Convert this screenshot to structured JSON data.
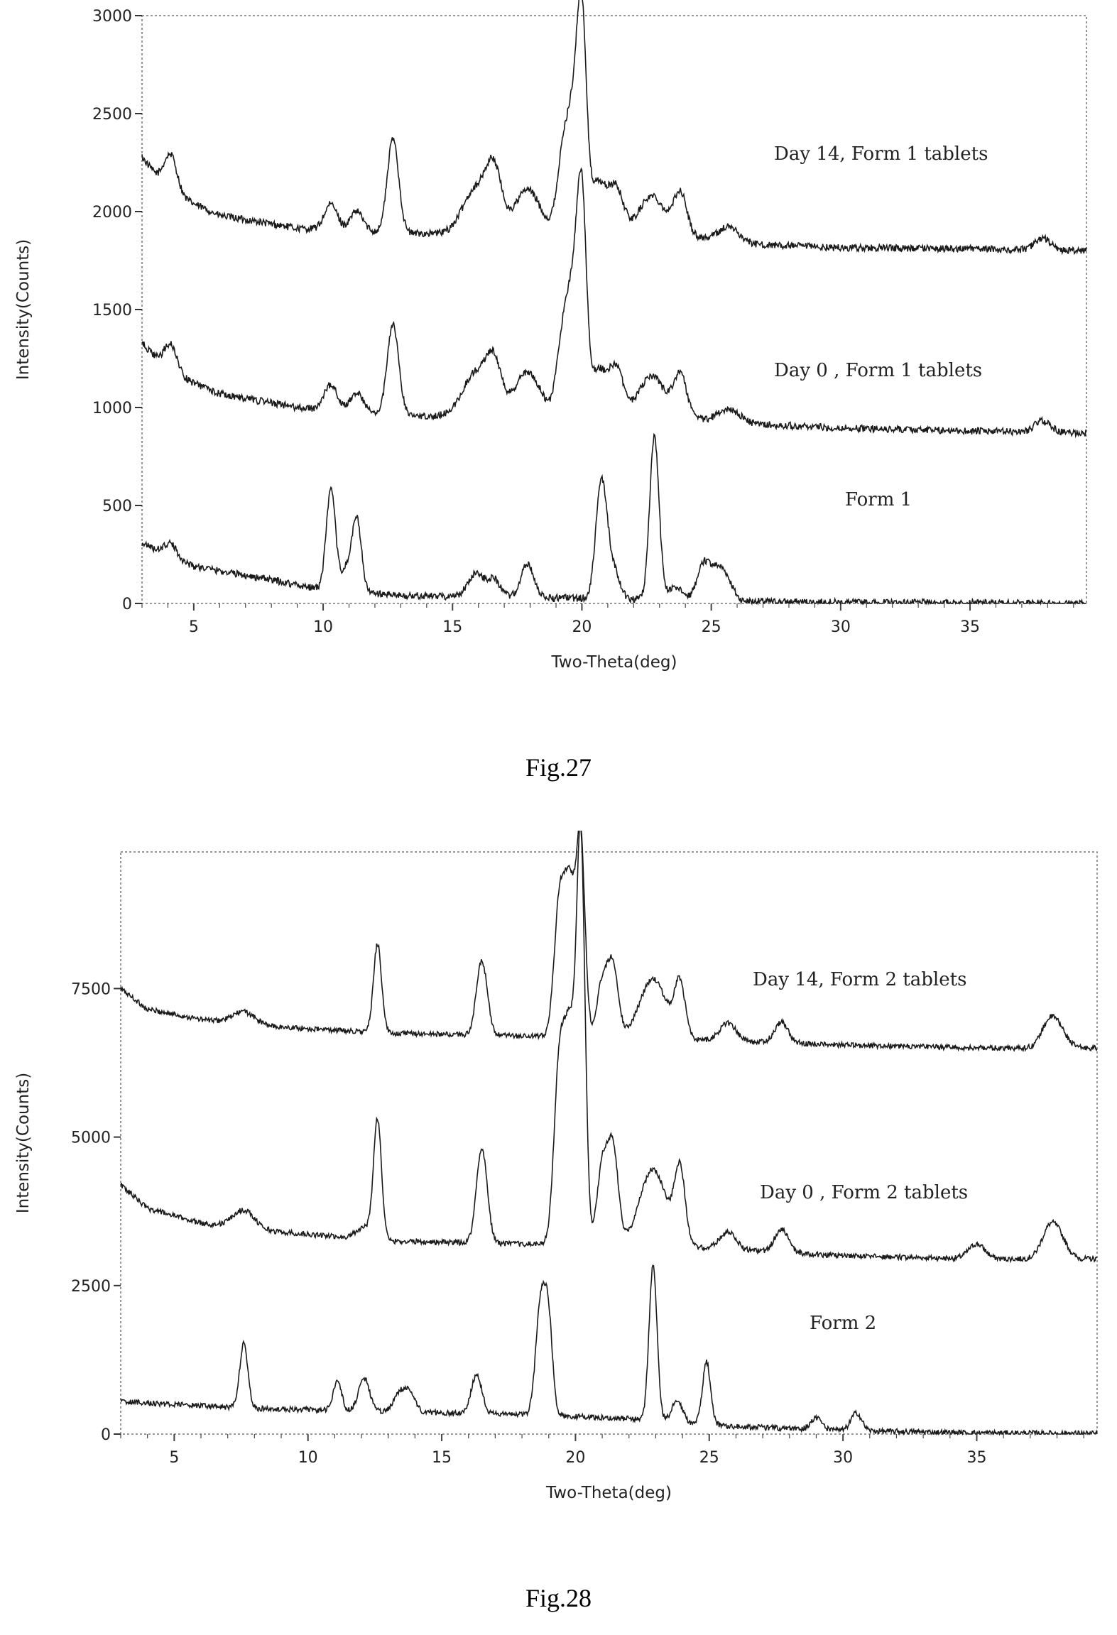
{
  "chart_data": [
    {
      "type": "line",
      "caption": "Fig.27",
      "xlabel": "Two-Theta(deg)",
      "ylabel": "Intensity(Counts)",
      "xlim": [
        3,
        39.5
      ],
      "ylim": [
        0,
        3000
      ],
      "x_ticks": [
        5,
        10,
        15,
        20,
        25,
        30,
        35
      ],
      "y_ticks": [
        0,
        500,
        1000,
        1500,
        2000,
        2500,
        3000
      ],
      "series": [
        {
          "name": "Day 14, Form 1 tablets",
          "baseline": [
            [
              3,
              2280
            ],
            [
              4,
              2100
            ],
            [
              6,
              1980
            ],
            [
              9,
              1915
            ],
            [
              13,
              1890
            ],
            [
              19,
              1880
            ],
            [
              24,
              1880
            ],
            [
              26,
              1835
            ],
            [
              30,
              1815
            ],
            [
              35,
              1810
            ],
            [
              39.5,
              1800
            ]
          ],
          "peaks": [
            [
              4.1,
              200,
              0.25
            ],
            [
              10.3,
              130,
              0.25
            ],
            [
              11.3,
              100,
              0.25
            ],
            [
              12.7,
              480,
              0.22
            ],
            [
              15.9,
              230,
              0.5
            ],
            [
              16.6,
              290,
              0.3
            ],
            [
              17.9,
              230,
              0.5
            ],
            [
              19.3,
              430,
              0.25
            ],
            [
              19.7,
              500,
              0.22
            ],
            [
              20.0,
              1000,
              0.18
            ],
            [
              20.6,
              260,
              0.3
            ],
            [
              21.3,
              240,
              0.3
            ],
            [
              22.7,
              200,
              0.5
            ],
            [
              23.8,
              210,
              0.25
            ],
            [
              25.7,
              80,
              0.4
            ],
            [
              37.8,
              60,
              0.3
            ]
          ]
        },
        {
          "name": "Day 0 , Form 1 tablets",
          "baseline": [
            [
              3,
              1330
            ],
            [
              4,
              1180
            ],
            [
              6,
              1070
            ],
            [
              9,
              1000
            ],
            [
              13,
              960
            ],
            [
              19,
              950
            ],
            [
              24,
              950
            ],
            [
              26,
              920
            ],
            [
              30,
              895
            ],
            [
              35,
              880
            ],
            [
              39.5,
              870
            ]
          ],
          "peaks": [
            [
              4.1,
              150,
              0.25
            ],
            [
              10.3,
              130,
              0.25
            ],
            [
              11.3,
              100,
              0.25
            ],
            [
              12.7,
              460,
              0.22
            ],
            [
              15.9,
              220,
              0.5
            ],
            [
              16.6,
              240,
              0.3
            ],
            [
              17.9,
              230,
              0.5
            ],
            [
              19.3,
              440,
              0.25
            ],
            [
              19.7,
              520,
              0.22
            ],
            [
              20.0,
              1000,
              0.18
            ],
            [
              20.6,
              230,
              0.3
            ],
            [
              21.3,
              250,
              0.3
            ],
            [
              22.7,
              210,
              0.5
            ],
            [
              23.8,
              210,
              0.25
            ],
            [
              25.7,
              70,
              0.4
            ],
            [
              37.8,
              60,
              0.3
            ]
          ]
        },
        {
          "name": "Form 1",
          "baseline": [
            [
              3,
              310
            ],
            [
              4,
              240
            ],
            [
              5,
              190
            ],
            [
              8,
              120
            ],
            [
              10,
              70
            ],
            [
              13,
              40
            ],
            [
              18,
              30
            ],
            [
              23,
              20
            ],
            [
              27,
              10
            ],
            [
              30,
              5
            ],
            [
              39.5,
              0
            ]
          ],
          "peaks": [
            [
              4.1,
              70,
              0.25
            ],
            [
              10.3,
              510,
              0.18
            ],
            [
              10.9,
              110,
              0.2
            ],
            [
              11.3,
              370,
              0.18
            ],
            [
              15.9,
              120,
              0.3
            ],
            [
              16.6,
              90,
              0.25
            ],
            [
              17.9,
              170,
              0.25
            ],
            [
              20.7,
              430,
              0.2
            ],
            [
              20.9,
              250,
              0.2
            ],
            [
              21.3,
              120,
              0.2
            ],
            [
              22.8,
              830,
              0.18
            ],
            [
              23.6,
              60,
              0.3
            ],
            [
              24.7,
              180,
              0.25
            ],
            [
              25.2,
              130,
              0.25
            ],
            [
              25.6,
              100,
              0.25
            ]
          ]
        }
      ],
      "annotations": [
        "Day 14, Form 1 tablets",
        "Day 0 , Form 1 tablets",
        "Form 1"
      ]
    },
    {
      "type": "line",
      "caption": "Fig.28",
      "xlabel": "Two-Theta(deg)",
      "ylabel": "Intensity(Counts)",
      "xlim": [
        3,
        39.5
      ],
      "ylim": [
        0,
        9800
      ],
      "x_ticks": [
        5,
        10,
        15,
        20,
        25,
        30,
        35
      ],
      "y_ticks": [
        0,
        2500,
        5000,
        7500
      ],
      "series": [
        {
          "name": "Day 14, Form 2 tablets",
          "baseline": [
            [
              3,
              7500
            ],
            [
              4,
              7150
            ],
            [
              6,
              6980
            ],
            [
              9,
              6850
            ],
            [
              13,
              6750
            ],
            [
              18,
              6700
            ],
            [
              24,
              6650
            ],
            [
              30,
              6550
            ],
            [
              35,
              6500
            ],
            [
              39.5,
              6500
            ]
          ],
          "peaks": [
            [
              7.6,
              200,
              0.4
            ],
            [
              12.6,
              1500,
              0.15
            ],
            [
              16.5,
              1250,
              0.2
            ],
            [
              19.4,
              2200,
              0.2
            ],
            [
              19.8,
              2400,
              0.2
            ],
            [
              20.2,
              3200,
              0.16
            ],
            [
              21.0,
              900,
              0.2
            ],
            [
              21.4,
              1200,
              0.2
            ],
            [
              22.9,
              1000,
              0.5
            ],
            [
              23.9,
              900,
              0.2
            ],
            [
              25.7,
              300,
              0.3
            ],
            [
              27.7,
              350,
              0.25
            ],
            [
              37.7,
              400,
              0.3
            ],
            [
              38.1,
              250,
              0.3
            ]
          ]
        },
        {
          "name": "Day 0 , Form 2 tablets",
          "baseline": [
            [
              3,
              4200
            ],
            [
              4,
              3800
            ],
            [
              6,
              3550
            ],
            [
              9,
              3400
            ],
            [
              13,
              3250
            ],
            [
              18,
              3200
            ],
            [
              24,
              3150
            ],
            [
              30,
              3000
            ],
            [
              35,
              2950
            ],
            [
              39.5,
              2950
            ]
          ],
          "peaks": [
            [
              7.6,
              300,
              0.4
            ],
            [
              12.1,
              200,
              0.3
            ],
            [
              12.6,
              2000,
              0.15
            ],
            [
              16.5,
              1600,
              0.2
            ],
            [
              19.4,
              3000,
              0.2
            ],
            [
              19.8,
              3300,
              0.2
            ],
            [
              20.2,
              6600,
              0.16
            ],
            [
              21.0,
              1300,
              0.2
            ],
            [
              21.4,
              1600,
              0.2
            ],
            [
              22.9,
              1300,
              0.5
            ],
            [
              23.9,
              1250,
              0.2
            ],
            [
              25.7,
              300,
              0.3
            ],
            [
              27.7,
              400,
              0.25
            ],
            [
              35.0,
              250,
              0.3
            ],
            [
              37.7,
              450,
              0.3
            ],
            [
              38.1,
              300,
              0.3
            ]
          ]
        },
        {
          "name": "Form 2",
          "baseline": [
            [
              3,
              550
            ],
            [
              5,
              500
            ],
            [
              8,
              430
            ],
            [
              11,
              400
            ],
            [
              15,
              360
            ],
            [
              18,
              330
            ],
            [
              22,
              260
            ],
            [
              26,
              130
            ],
            [
              30,
              60
            ],
            [
              35,
              20
            ],
            [
              39.5,
              10
            ]
          ],
          "peaks": [
            [
              7.6,
              1100,
              0.15
            ],
            [
              11.1,
              500,
              0.15
            ],
            [
              12.1,
              550,
              0.2
            ],
            [
              13.4,
              300,
              0.2
            ],
            [
              13.8,
              350,
              0.2
            ],
            [
              16.3,
              650,
              0.2
            ],
            [
              18.7,
              1900,
              0.18
            ],
            [
              19.0,
              1450,
              0.15
            ],
            [
              22.9,
              2600,
              0.15
            ],
            [
              23.8,
              350,
              0.2
            ],
            [
              24.9,
              1050,
              0.15
            ],
            [
              29.0,
              200,
              0.2
            ],
            [
              30.5,
              300,
              0.2
            ]
          ]
        }
      ],
      "annotations": [
        "Day 14, Form 2 tablets",
        "Day 0 , Form 2 tablets",
        "Form 2"
      ]
    }
  ]
}
